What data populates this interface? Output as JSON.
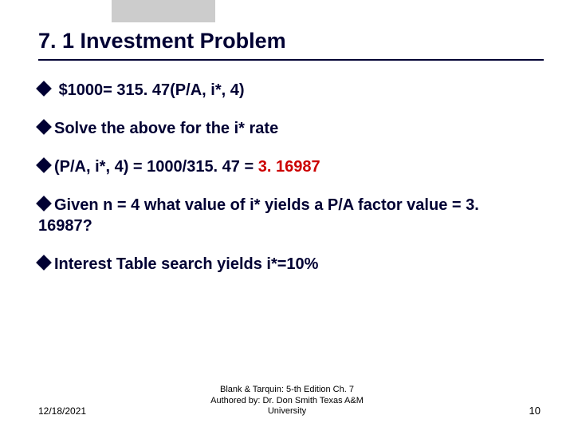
{
  "title": "7. 1 Investment Problem",
  "bullets": [
    {
      "prefix": " ",
      "text": "$1000= 315. 47(P/A, i*, 4)",
      "highlight": ""
    },
    {
      "prefix": "",
      "text": "Solve the above for the i* rate",
      "highlight": ""
    },
    {
      "prefix": "",
      "text": "(P/A, i*, 4) = 1000/315. 47 = ",
      "highlight": "3. 16987"
    },
    {
      "prefix": "",
      "text": "Given n = 4 what value of i* yields a P/A factor value = 3. 16987?",
      "highlight": ""
    },
    {
      "prefix": "",
      "text": "Interest Table search yields i*=10%",
      "highlight": ""
    }
  ],
  "footer": {
    "date": "12/18/2021",
    "center_line1": "Blank & Tarquin: 5-th Edition Ch. 7",
    "center_line2": "Authored by: Dr. Don Smith Texas A&M",
    "center_line3": "University",
    "page": "10"
  },
  "colors": {
    "title": "#000033",
    "bullet": "#000033",
    "highlight": "#cc0000",
    "accent_bar": "#cccccc",
    "background": "#ffffff"
  }
}
